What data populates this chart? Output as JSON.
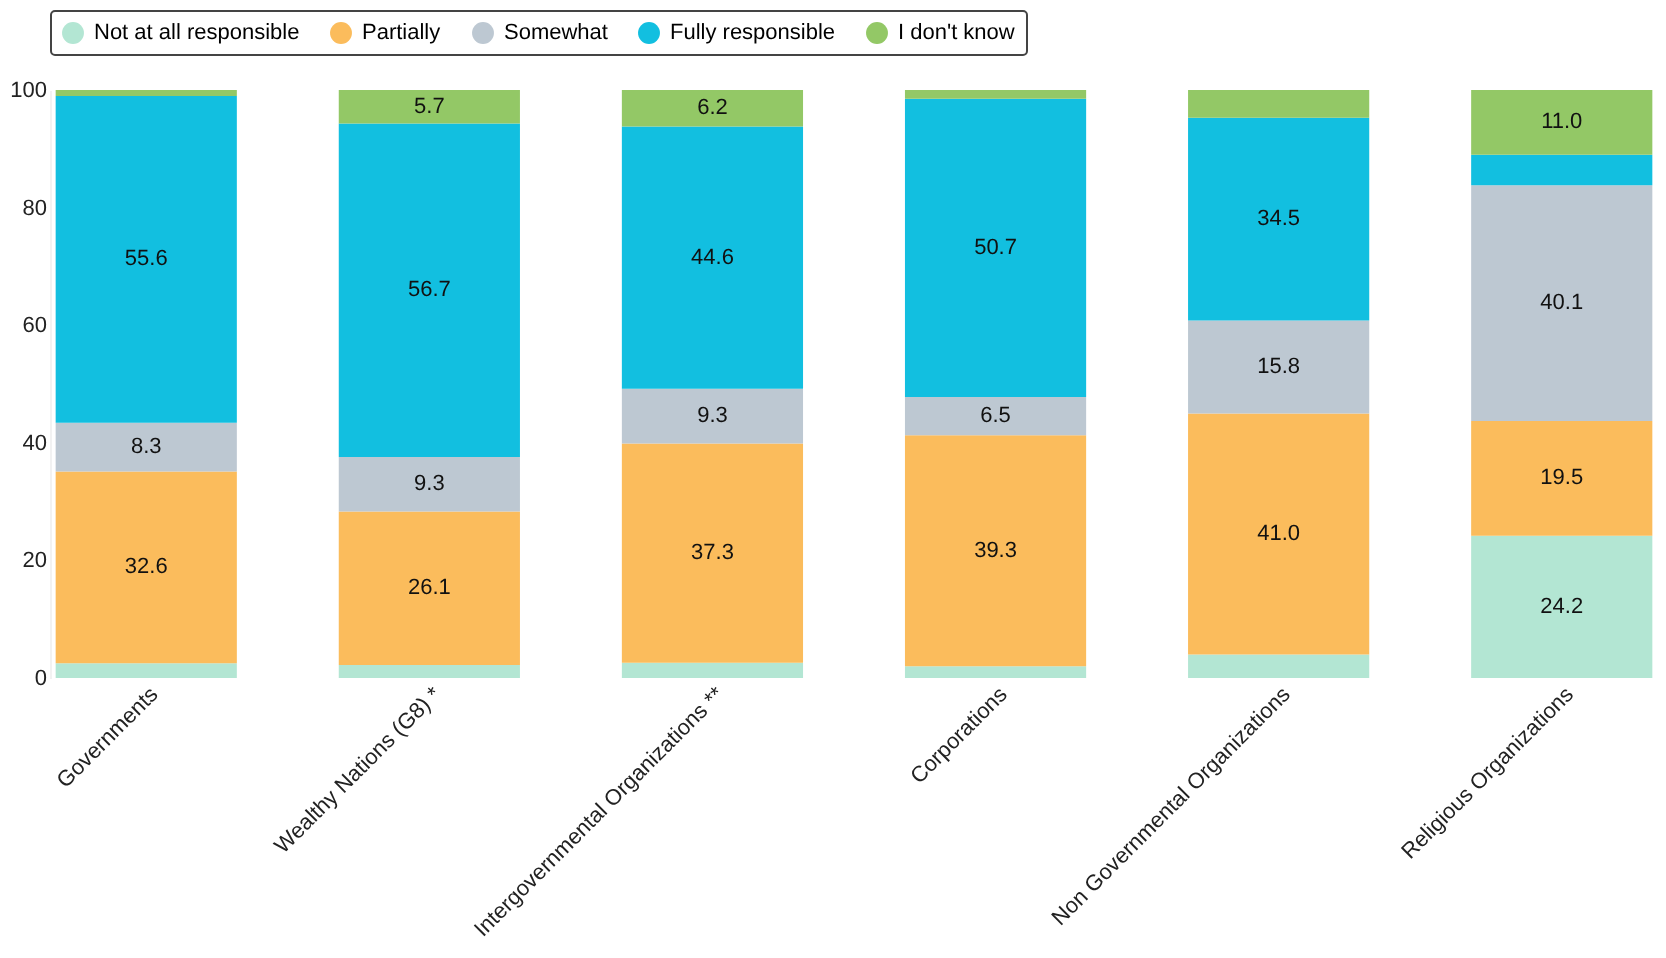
{
  "chart_data": {
    "type": "bar",
    "stacked": true,
    "categories": [
      "Governments",
      "Wealthy Nations (G8) *",
      "Intergovernmental Organizations **",
      "Corporations",
      "Non Governmental Organizations",
      "Religious Organizations"
    ],
    "series": [
      {
        "name": "Not at all responsible",
        "color": "#b3e6d3",
        "values": [
          2.5,
          2.2,
          2.6,
          2,
          4,
          24.2
        ],
        "value_labels": [
          null,
          null,
          null,
          null,
          null,
          "24.2"
        ]
      },
      {
        "name": "Partially",
        "color": "#fbbc5c",
        "values": [
          32.6,
          26.1,
          37.3,
          39.3,
          41.0,
          19.5
        ],
        "value_labels": [
          "32.6",
          "26.1",
          "37.3",
          "39.3",
          "41.0",
          "19.5"
        ]
      },
      {
        "name": "Somewhat",
        "color": "#bdc8d2",
        "values": [
          8.3,
          9.3,
          9.3,
          6.5,
          15.8,
          40.1
        ],
        "value_labels": [
          "8.3",
          "9.3",
          "9.3",
          "6.5",
          "15.8",
          "40.1"
        ]
      },
      {
        "name": "Fully responsible",
        "color": "#12bfe0",
        "values": [
          55.6,
          56.7,
          44.6,
          50.7,
          34.5,
          5.2
        ],
        "value_labels": [
          "55.6",
          "56.7",
          "44.6",
          "50.7",
          "34.5",
          null
        ]
      },
      {
        "name": "I don't know",
        "color": "#93c866",
        "values": [
          1.0,
          5.7,
          6.2,
          1.5,
          4.7,
          11.0
        ],
        "value_labels": [
          null,
          "5.7",
          "6.2",
          null,
          null,
          "11.0"
        ]
      }
    ],
    "ylim": [
      0,
      100
    ],
    "yticks": [
      0,
      20,
      40,
      60,
      80,
      100
    ],
    "grid": false,
    "legend": "top"
  }
}
